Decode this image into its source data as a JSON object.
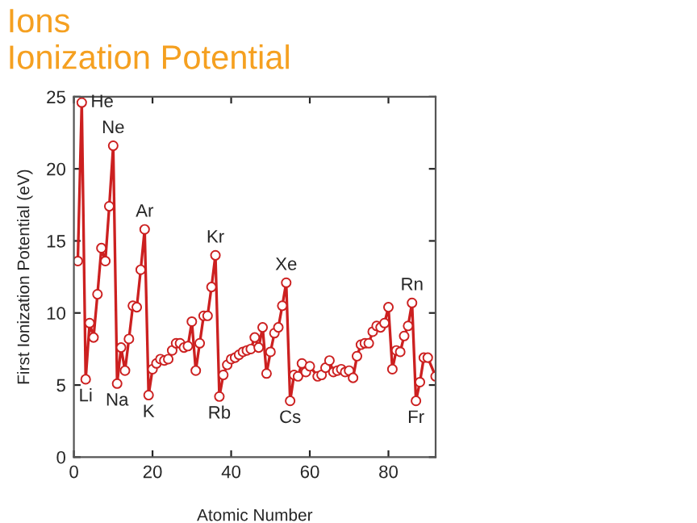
{
  "chart_data": {
    "type": "line",
    "title": "Ions",
    "subtitle": "Ionization Potential",
    "xlabel": "Atomic Number",
    "ylabel": "First Ionization Potential (eV)",
    "x": [
      1,
      2,
      3,
      4,
      5,
      6,
      7,
      8,
      9,
      10,
      11,
      12,
      13,
      14,
      15,
      16,
      17,
      18,
      19,
      20,
      21,
      22,
      23,
      24,
      25,
      26,
      27,
      28,
      29,
      30,
      31,
      32,
      33,
      34,
      35,
      36,
      37,
      38,
      39,
      40,
      41,
      42,
      43,
      44,
      45,
      46,
      47,
      48,
      49,
      50,
      51,
      52,
      53,
      54,
      55,
      56,
      57,
      58,
      59,
      60,
      61,
      62,
      63,
      64,
      65,
      66,
      67,
      68,
      69,
      70,
      71,
      72,
      73,
      74,
      75,
      76,
      77,
      78,
      79,
      80,
      81,
      82,
      83,
      84,
      85,
      86,
      87,
      88,
      89,
      90,
      91,
      92
    ],
    "series": [
      {
        "color": "#cc2020",
        "values": [
          13.6,
          24.6,
          5.4,
          9.3,
          8.3,
          11.3,
          14.5,
          13.6,
          17.4,
          21.6,
          5.1,
          7.6,
          6.0,
          8.2,
          10.5,
          10.4,
          13.0,
          15.8,
          4.3,
          6.1,
          6.5,
          6.8,
          6.7,
          6.8,
          7.4,
          7.9,
          7.9,
          7.6,
          7.7,
          9.4,
          6.0,
          7.9,
          9.8,
          9.8,
          11.8,
          14.0,
          4.2,
          5.7,
          6.4,
          6.8,
          6.9,
          7.1,
          7.3,
          7.4,
          7.5,
          8.3,
          7.6,
          9.0,
          5.8,
          7.3,
          8.6,
          9.0,
          10.5,
          12.1,
          3.9,
          5.7,
          5.6,
          6.5,
          5.9,
          6.3,
          null,
          5.6,
          5.7,
          6.2,
          6.7,
          5.9,
          6.0,
          6.1,
          5.9,
          6.0,
          5.5,
          7.0,
          7.8,
          7.9,
          7.9,
          8.7,
          9.1,
          9.0,
          9.3,
          10.4,
          6.1,
          7.4,
          7.3,
          8.4,
          9.1,
          10.7,
          3.9,
          5.2,
          6.9,
          6.9,
          null,
          5.6
        ]
      }
    ],
    "xlim": [
      0,
      92
    ],
    "ylim": [
      0,
      25
    ],
    "xticks": [
      0,
      20,
      40,
      60,
      80
    ],
    "yticks": [
      0,
      5,
      10,
      15,
      20,
      25
    ],
    "marker": "circle",
    "line_style": "solid",
    "grid": false,
    "legend": false,
    "annotations": [
      {
        "text": "He",
        "x": 2,
        "y": 24.6
      },
      {
        "text": "Ne",
        "x": 10,
        "y": 21.6
      },
      {
        "text": "Ar",
        "x": 18,
        "y": 15.8
      },
      {
        "text": "Kr",
        "x": 36,
        "y": 14.0
      },
      {
        "text": "Xe",
        "x": 54,
        "y": 12.1
      },
      {
        "text": "Rn",
        "x": 86,
        "y": 10.7
      },
      {
        "text": "Li",
        "x": 3,
        "y": 5.4
      },
      {
        "text": "Na",
        "x": 11,
        "y": 5.1
      },
      {
        "text": "K",
        "x": 19,
        "y": 4.3
      },
      {
        "text": "Rb",
        "x": 37,
        "y": 4.2
      },
      {
        "text": "Cs",
        "x": 55,
        "y": 3.9
      },
      {
        "text": "Fr",
        "x": 87,
        "y": 3.9
      }
    ]
  }
}
